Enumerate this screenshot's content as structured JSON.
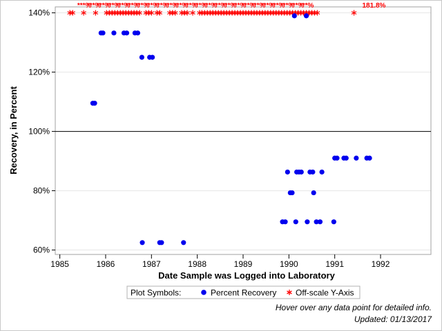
{
  "chart_data": {
    "type": "scatter",
    "xlabel": "Date Sample was Logged into Laboratory",
    "ylabel": "Recovery, in Percent",
    "xlim": [
      1984.9,
      1993.1
    ],
    "ylim": [
      58.5,
      142
    ],
    "x_ticks": [
      1985,
      1986,
      1987,
      1988,
      1989,
      1990,
      1991,
      1992
    ],
    "x_tick_labels": [
      "1985",
      "1986",
      "1987",
      "1988",
      "1989",
      "1990",
      "1991",
      "1992"
    ],
    "y_ticks": [
      60,
      80,
      100,
      120,
      140
    ],
    "y_tick_labels": [
      "60%",
      "80%",
      "100%",
      "120%",
      "140%"
    ],
    "reference_line": 100,
    "grid": "horizontal",
    "legend_title": "Plot Symbols:",
    "legend_position": "bottom",
    "series": [
      {
        "name": "Percent Recovery",
        "color": "#0000ee",
        "marker": "circle",
        "x": [
          1985.72,
          1985.76,
          1985.9,
          1985.94,
          1986.18,
          1986.4,
          1986.46,
          1986.64,
          1986.7,
          1986.79,
          1986.96,
          1987.02,
          1986.8,
          1987.18,
          1987.22,
          1987.7,
          1989.86,
          1989.92,
          1989.97,
          1990.03,
          1990.07,
          1990.17,
          1990.22,
          1990.27,
          1990.46,
          1990.52,
          1990.72,
          1990.54,
          1990.15,
          1990.4,
          1990.6,
          1990.68,
          1990.98,
          1991.0,
          1991.05,
          1991.2,
          1991.25,
          1991.47,
          1991.7,
          1991.76,
          1990.12,
          1990.38
        ],
        "y": [
          109.5,
          109.5,
          133.2,
          133.2,
          133.2,
          133.2,
          133.2,
          133.2,
          133.2,
          125.0,
          125.0,
          125.0,
          62.5,
          62.5,
          62.5,
          62.5,
          69.5,
          69.5,
          86.3,
          79.3,
          79.3,
          86.3,
          86.3,
          86.3,
          86.3,
          86.3,
          86.3,
          79.3,
          69.5,
          69.5,
          69.5,
          69.5,
          69.5,
          91.0,
          91.0,
          91.0,
          91.0,
          91.0,
          91.0,
          91.0,
          139.0,
          139.0
        ]
      },
      {
        "name": "Off-scale Y-Axis",
        "color": "#ff0000",
        "marker": "asterisk",
        "x": [
          1985.22,
          1985.28,
          1985.52,
          1985.78,
          1986.02,
          1986.08,
          1986.14,
          1986.2,
          1986.26,
          1986.32,
          1986.38,
          1986.44,
          1986.5,
          1986.56,
          1986.62,
          1986.68,
          1986.74,
          1986.88,
          1986.94,
          1987.0,
          1987.12,
          1987.18,
          1987.4,
          1987.46,
          1987.52,
          1987.66,
          1987.72,
          1987.78,
          1987.9,
          1988.05,
          1988.1,
          1988.16,
          1988.22,
          1988.28,
          1988.34,
          1988.4,
          1988.46,
          1988.52,
          1988.58,
          1988.64,
          1988.7,
          1988.76,
          1988.82,
          1988.88,
          1988.94,
          1989.0,
          1989.06,
          1989.12,
          1989.18,
          1989.24,
          1989.3,
          1989.36,
          1989.42,
          1989.48,
          1989.54,
          1989.6,
          1989.66,
          1989.72,
          1989.78,
          1989.84,
          1989.9,
          1989.96,
          1990.02,
          1990.08,
          1990.14,
          1990.2,
          1990.26,
          1990.32,
          1990.38,
          1990.44,
          1990.5,
          1990.56,
          1990.62,
          1991.42
        ],
        "y": [
          140,
          140,
          140,
          140,
          140,
          140,
          140,
          140,
          140,
          140,
          140,
          140,
          140,
          140,
          140,
          140,
          140,
          140,
          140,
          140,
          140,
          140,
          140,
          140,
          140,
          140,
          140,
          140,
          140,
          140,
          140,
          140,
          140,
          140,
          140,
          140,
          140,
          140,
          140,
          140,
          140,
          140,
          140,
          140,
          140,
          140,
          140,
          140,
          140,
          140,
          140,
          140,
          140,
          140,
          140,
          140,
          140,
          140,
          140,
          140,
          140,
          140,
          140,
          140,
          140,
          140,
          140,
          140,
          140,
          140,
          140,
          140,
          140,
          140
        ]
      }
    ],
    "annotations": [
      {
        "text": "181.8%",
        "x": 1991.6
      }
    ]
  },
  "notes": {
    "hover": "Hover over any data point for detailed info.",
    "updated": "Updated: 01/13/2017"
  }
}
